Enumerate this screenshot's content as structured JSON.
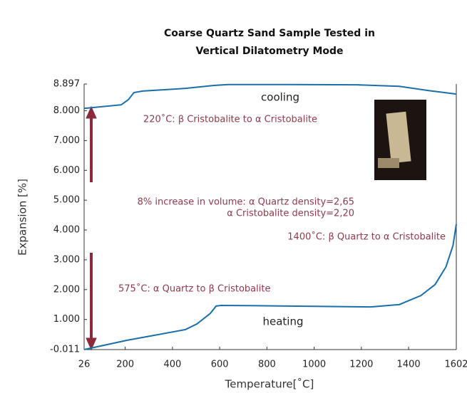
{
  "chart_data": {
    "type": "line",
    "title": [
      "Coarse Quartz Sand Sample Tested in",
      "Vertical Dilatometry Mode"
    ],
    "x_label": "Temperature[˚C]",
    "y_label": "Expansion [%]",
    "xlim": [
      26,
      1602
    ],
    "xticks": [
      26,
      200,
      400,
      600,
      800,
      1000,
      1200,
      1400,
      1602
    ],
    "ylim": [
      -0.011,
      8.897
    ],
    "yticks": [
      -0.011,
      {
        "value": 1,
        "label": "1.000"
      },
      {
        "value": 2,
        "label": "2.000"
      },
      {
        "value": 3,
        "label": "3.000"
      },
      {
        "value": 4,
        "label": "4.000"
      },
      {
        "value": 5,
        "label": "5.000"
      },
      {
        "value": 6,
        "label": "6.000"
      },
      {
        "value": 7,
        "label": "7.000"
      },
      {
        "value": 8,
        "label": "8.000"
      },
      8.897
    ],
    "series": [
      {
        "name": "heating",
        "color": "#1a6fa8",
        "x": [
          26,
          207,
          455,
          504,
          560,
          585,
          606,
          760,
          1000,
          1240,
          1361,
          1452,
          1512,
          1558,
          1588,
          1602
        ],
        "values": [
          -0.011,
          0.3,
          0.66,
          0.85,
          1.2,
          1.45,
          1.47,
          1.46,
          1.44,
          1.42,
          1.5,
          1.8,
          2.17,
          2.76,
          3.48,
          4.2
        ]
      },
      {
        "name": "cooling",
        "color": "#1a6fa8",
        "x": [
          26,
          183,
          213,
          237,
          274,
          455,
          576,
          636,
          900,
          1180,
          1361,
          1482,
          1602
        ],
        "values": [
          8.08,
          8.2,
          8.37,
          8.61,
          8.66,
          8.75,
          8.85,
          8.88,
          8.88,
          8.87,
          8.82,
          8.68,
          8.56
        ]
      }
    ],
    "annotations": [
      "220˚C: β Cristobalite to α Cristobalite",
      "8% increase in volume: α Quartz density=2,65",
      "α Cristobalite density=2,20",
      "1400˚C: β Quartz to α Cristobalite",
      "575˚C: α Quartz to β Cristobalite"
    ]
  }
}
